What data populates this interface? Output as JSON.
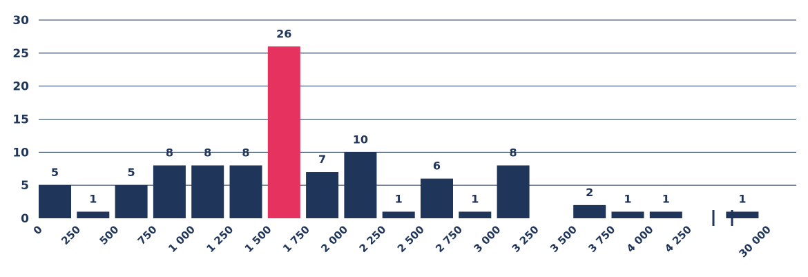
{
  "chart_data": {
    "type": "bar",
    "title": "",
    "xlabel": "",
    "ylabel": "",
    "ylim": [
      0,
      30
    ],
    "y_ticks": [
      "0",
      "5",
      "10",
      "15",
      "20",
      "25",
      "30"
    ],
    "grid": true,
    "x_tick_labels": [
      "0",
      "250",
      "500",
      "750",
      "1 000",
      "1 250",
      "1 500",
      "1 750",
      "2 000",
      "2 250",
      "2 500",
      "2 750",
      "3 000",
      "3 250",
      "3 500",
      "3 750",
      "4 000",
      "4 250",
      "30 000"
    ],
    "bins": [
      {
        "from": "0",
        "to": "250",
        "value": 5
      },
      {
        "from": "250",
        "to": "500",
        "value": 1
      },
      {
        "from": "500",
        "to": "750",
        "value": 5
      },
      {
        "from": "750",
        "to": "1 000",
        "value": 8
      },
      {
        "from": "1 000",
        "to": "1 250",
        "value": 8
      },
      {
        "from": "1 250",
        "to": "1 500",
        "value": 8
      },
      {
        "from": "1 500",
        "to": "1 750",
        "value": 26,
        "highlight": true
      },
      {
        "from": "1 750",
        "to": "2 000",
        "value": 7
      },
      {
        "from": "2 000",
        "to": "2 250",
        "value": 10
      },
      {
        "from": "2 250",
        "to": "2 500",
        "value": 1
      },
      {
        "from": "2 500",
        "to": "2 750",
        "value": 6
      },
      {
        "from": "2 750",
        "to": "3 000",
        "value": 1
      },
      {
        "from": "3 000",
        "to": "3 250",
        "value": 8
      },
      {
        "from": "3 250",
        "to": "3 500",
        "value": 0
      },
      {
        "from": "3 500",
        "to": "3 750",
        "value": 2
      },
      {
        "from": "3 750",
        "to": "4 000",
        "value": 1
      },
      {
        "from": "4 000",
        "to": "4 250",
        "value": 1
      },
      {
        "from": "4 250",
        "to": "30 000",
        "value": 0,
        "axis_break": true
      },
      {
        "from": "4 250",
        "to": "30 000",
        "value": 1
      }
    ],
    "colors": {
      "bar": "#1f3559",
      "highlight": "#e5325e",
      "text": "#1f3559"
    }
  }
}
